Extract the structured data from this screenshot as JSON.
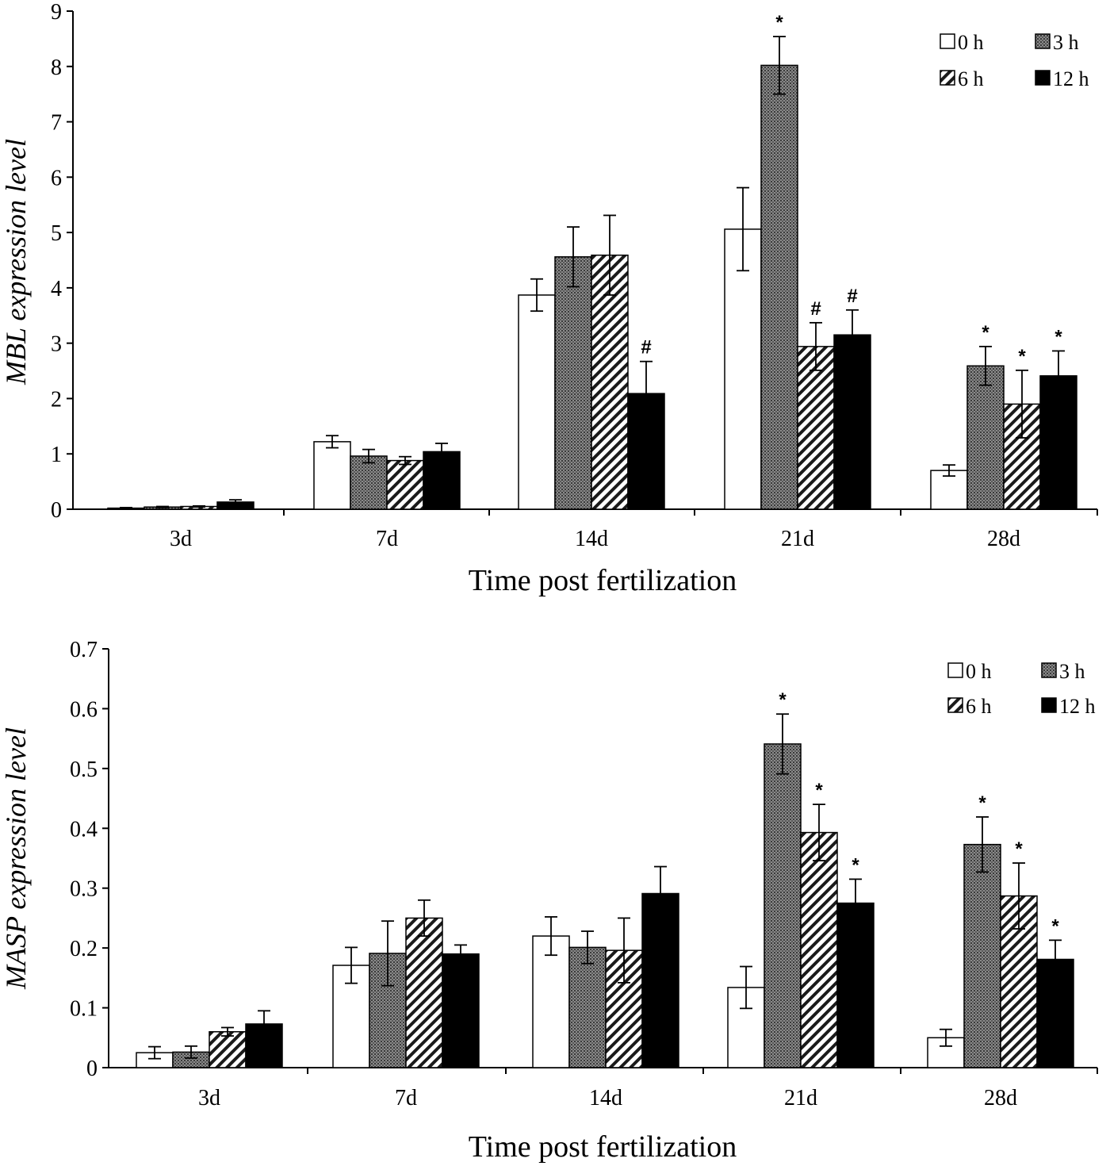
{
  "chart_data": [
    {
      "type": "bar",
      "ylabel": "MBL expression level",
      "xlabel": "Time post fertilization",
      "ylim": [
        0,
        9
      ],
      "yticks": [
        "0",
        "1",
        "2",
        "3",
        "4",
        "5",
        "6",
        "7",
        "8",
        "9"
      ],
      "categories": [
        "3d",
        "7d",
        "14d",
        "21d",
        "28d"
      ],
      "legend_position": "top-right",
      "series": [
        {
          "name": "0 h",
          "pattern": "white",
          "values": [
            0.02,
            1.22,
            3.87,
            5.06,
            0.7
          ],
          "errors": [
            0.01,
            0.11,
            0.29,
            0.75,
            0.1
          ],
          "marks": [
            "",
            "",
            "",
            "",
            ""
          ]
        },
        {
          "name": "3 h",
          "pattern": "dotted",
          "values": [
            0.04,
            0.96,
            4.56,
            8.02,
            2.59
          ],
          "errors": [
            0.01,
            0.12,
            0.54,
            0.52,
            0.35
          ],
          "marks": [
            "",
            "",
            "",
            "*",
            "*"
          ]
        },
        {
          "name": "6 h",
          "pattern": "hatched",
          "values": [
            0.05,
            0.88,
            4.59,
            2.94,
            1.9
          ],
          "errors": [
            0.01,
            0.07,
            0.72,
            0.43,
            0.61
          ],
          "marks": [
            "",
            "",
            "",
            "#",
            "*"
          ]
        },
        {
          "name": "12 h",
          "pattern": "black",
          "values": [
            0.13,
            1.04,
            2.09,
            3.15,
            2.41
          ],
          "errors": [
            0.04,
            0.15,
            0.58,
            0.45,
            0.45
          ],
          "marks": [
            "",
            "",
            "#",
            "#",
            "*"
          ]
        }
      ]
    },
    {
      "type": "bar",
      "ylabel": "MASP expression level",
      "xlabel": "Time post fertilization",
      "ylim": [
        0,
        0.7
      ],
      "yticks": [
        "0",
        "0.1",
        "0.2",
        "0.3",
        "0.4",
        "0.5",
        "0.6",
        "0.7"
      ],
      "categories": [
        "3d",
        "7d",
        "14d",
        "21d",
        "28d"
      ],
      "legend_position": "top-right",
      "series": [
        {
          "name": "0 h",
          "pattern": "white",
          "values": [
            0.025,
            0.171,
            0.22,
            0.134,
            0.05
          ],
          "errors": [
            0.01,
            0.03,
            0.032,
            0.035,
            0.014
          ],
          "marks": [
            "",
            "",
            "",
            "",
            ""
          ]
        },
        {
          "name": "3 h",
          "pattern": "dotted",
          "values": [
            0.026,
            0.191,
            0.201,
            0.541,
            0.373
          ],
          "errors": [
            0.01,
            0.054,
            0.027,
            0.05,
            0.046
          ],
          "marks": [
            "",
            "",
            "",
            "*",
            "*"
          ]
        },
        {
          "name": "6 h",
          "pattern": "hatched",
          "values": [
            0.06,
            0.25,
            0.196,
            0.393,
            0.287
          ],
          "errors": [
            0.007,
            0.03,
            0.054,
            0.047,
            0.055
          ],
          "marks": [
            "",
            "",
            "",
            "*",
            "*"
          ]
        },
        {
          "name": "12 h",
          "pattern": "black",
          "values": [
            0.073,
            0.19,
            0.291,
            0.275,
            0.181
          ],
          "errors": [
            0.022,
            0.015,
            0.045,
            0.04,
            0.032
          ],
          "marks": [
            "",
            "",
            "",
            "*",
            "*"
          ]
        }
      ]
    }
  ]
}
